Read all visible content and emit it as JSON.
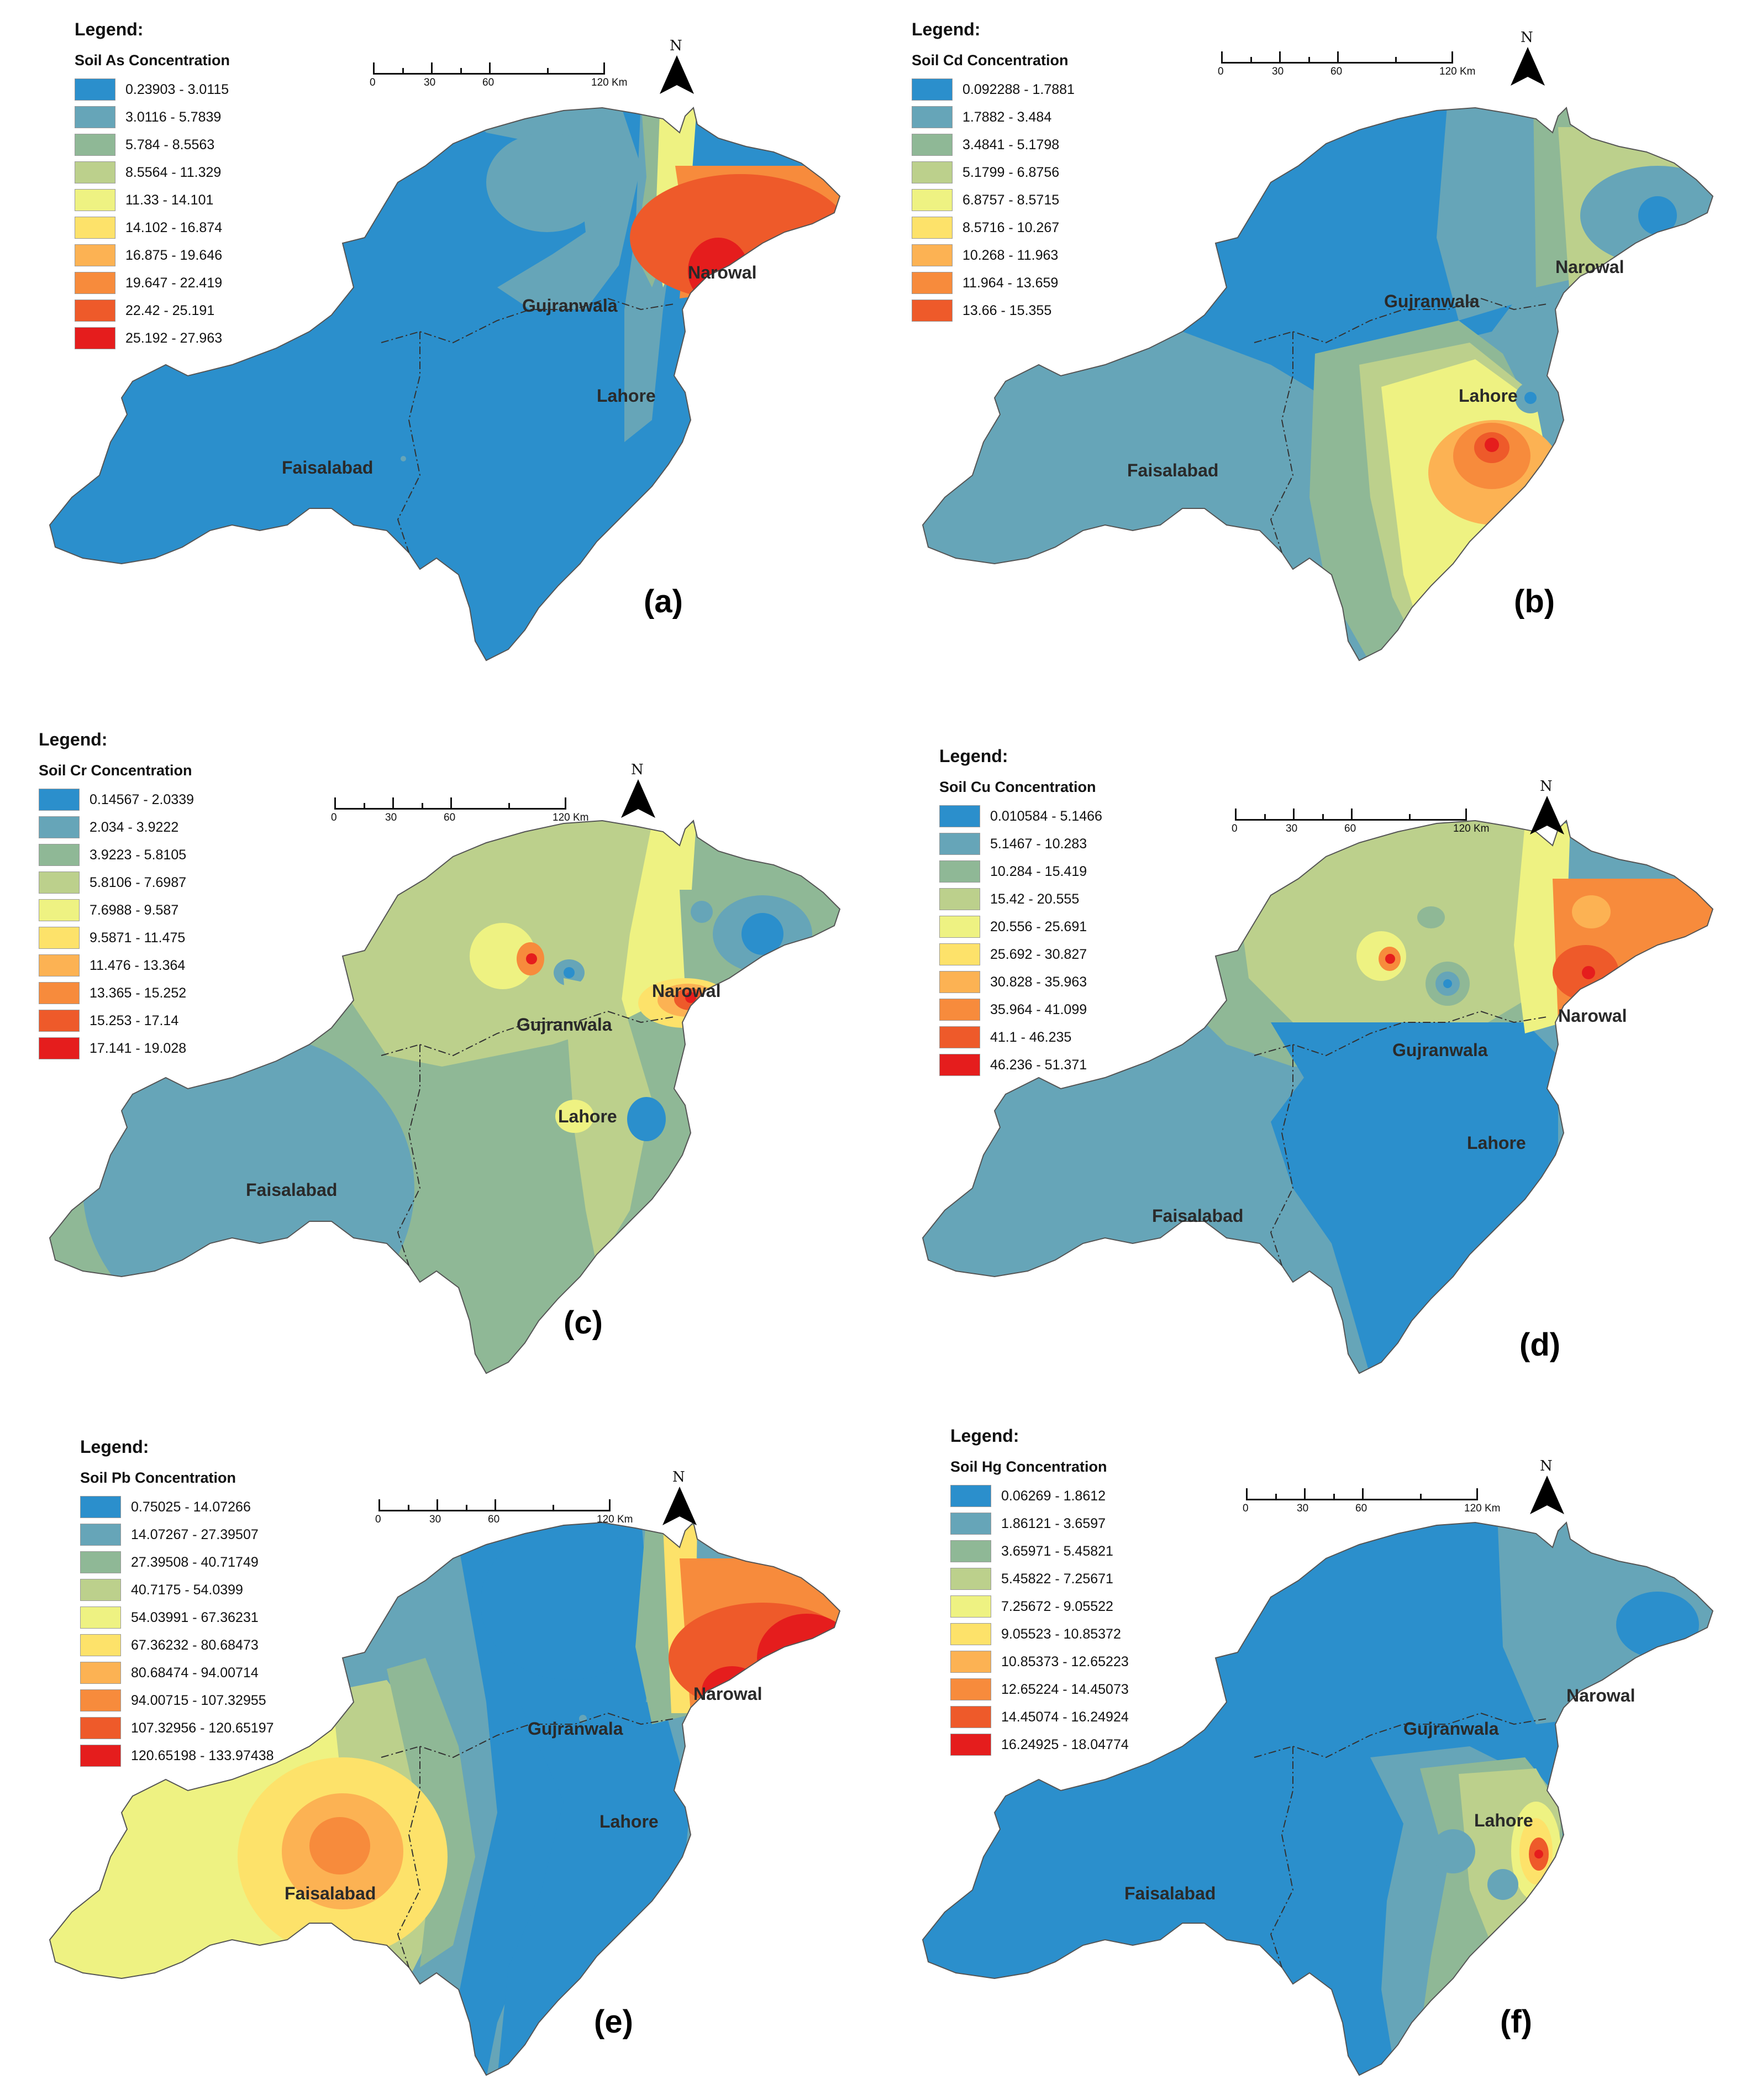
{
  "legend_title": "Legend:",
  "scale": {
    "ticks": [
      "0",
      "30",
      "60",
      "120 Km"
    ]
  },
  "north_letter": "N",
  "cities": {
    "narowal": "Narowal",
    "gujranwala": "Gujranwala",
    "lahore": "Lahore",
    "faisalabad": "Faisalabad"
  },
  "colors": [
    "#2b8fcc",
    "#66a5b8",
    "#8fb896",
    "#bcd08c",
    "#eef282",
    "#fde26a",
    "#fcb253",
    "#f78b3c",
    "#ee5a2a",
    "#e51d1d"
  ],
  "panels": [
    {
      "label": "(a)",
      "subtitle": "Soil As Concentration",
      "ranges": [
        "0.23903 - 3.0115",
        "3.0116 - 5.7839",
        "5.784 - 8.5563",
        "8.5564 - 11.329",
        "11.33 - 14.101",
        "14.102 - 16.874",
        "16.875 - 19.646",
        "19.647 - 22.419",
        "22.42 - 25.191",
        "25.192 - 27.963"
      ]
    },
    {
      "label": "(b)",
      "subtitle": "Soil Cd Concentration",
      "ranges": [
        "0.092288 - 1.7881",
        "1.7882 - 3.484",
        "3.4841 - 5.1798",
        "5.1799 - 6.8756",
        "6.8757 - 8.5715",
        "8.5716 - 10.267",
        "10.268 - 11.963",
        "11.964 - 13.659",
        "13.66 - 15.355"
      ]
    },
    {
      "label": "(c)",
      "subtitle": "Soil Cr Concentration",
      "ranges": [
        "0.14567 - 2.0339",
        "2.034 - 3.9222",
        "3.9223 - 5.8105",
        "5.8106 - 7.6987",
        "7.6988 - 9.587",
        "9.5871 - 11.475",
        "11.476 - 13.364",
        "13.365 - 15.252",
        "15.253 - 17.14",
        "17.141 - 19.028"
      ]
    },
    {
      "label": "(d)",
      "subtitle": "Soil Cu Concentration",
      "ranges": [
        "0.010584 - 5.1466",
        "5.1467 - 10.283",
        "10.284 - 15.419",
        "15.42 - 20.555",
        "20.556 - 25.691",
        "25.692 - 30.827",
        "30.828 - 35.963",
        "35.964 - 41.099",
        "41.1 - 46.235",
        "46.236 - 51.371"
      ]
    },
    {
      "label": "(e)",
      "subtitle": "Soil Pb Concentration",
      "ranges": [
        "0.75025 - 14.07266",
        "14.07267 - 27.39507",
        "27.39508 - 40.71749",
        "40.7175 - 54.0399",
        "54.03991 - 67.36231",
        "67.36232 - 80.68473",
        "80.68474 - 94.00714",
        "94.00715 - 107.32955",
        "107.32956 - 120.65197",
        "120.65198 - 133.97438"
      ]
    },
    {
      "label": "(f)",
      "subtitle": "Soil Hg Concentration",
      "ranges": [
        "0.06269 - 1.8612",
        "1.86121 - 3.6597",
        "3.65971 - 5.45821",
        "5.45822 - 7.25671",
        "7.25672 - 9.05522",
        "9.05523 - 10.85372",
        "10.85373 - 12.65223",
        "12.65224 - 14.45073",
        "14.45074 - 16.24924",
        "16.24925 - 18.04774"
      ]
    }
  ]
}
